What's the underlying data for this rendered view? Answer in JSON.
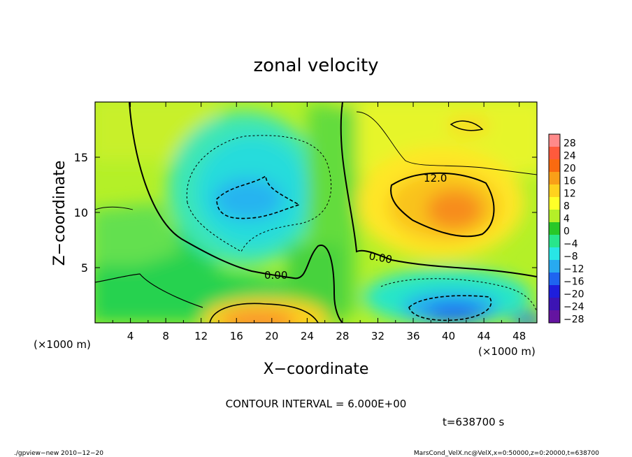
{
  "chart_data": {
    "type": "heatmap",
    "title": "zonal velocity",
    "xlabel": "X−coordinate",
    "ylabel": "Z−coordinate",
    "x_unit_label": "(×1000 m)",
    "z_unit_label": "(×1000 m)",
    "xlim": [
      0,
      50
    ],
    "ylim": [
      0,
      20
    ],
    "x_ticks": [
      "4",
      "8",
      "12",
      "16",
      "20",
      "24",
      "28",
      "32",
      "36",
      "40",
      "44",
      "48"
    ],
    "y_ticks": [
      "5",
      "10",
      "15"
    ],
    "colorbar": {
      "labels": [
        "28",
        "24",
        "20",
        "16",
        "12",
        "8",
        "4",
        "0",
        "−4",
        "−8",
        "−12",
        "−16",
        "−20",
        "−24",
        "−28"
      ],
      "colors": [
        "#ff8a8a",
        "#ff5a3c",
        "#f96a10",
        "#f9a018",
        "#ffd21e",
        "#ffff28",
        "#b4f028",
        "#28c828",
        "#28e68c",
        "#28e6e6",
        "#28aaf0",
        "#1e64f0",
        "#1e1edc",
        "#3c14b4",
        "#6414a0"
      ]
    },
    "contour_labels": [
      "12.0",
      "0.00",
      "0.00"
    ],
    "contour_interval_text": "CONTOUR INTERVAL = 6.000E+00",
    "features": [
      {
        "kind": "max",
        "x": 40,
        "z": 10.5,
        "value": 18
      },
      {
        "kind": "max",
        "x": 19,
        "z": 1.0,
        "value": 16
      },
      {
        "kind": "min",
        "x": 16,
        "z": 11,
        "value": -14
      },
      {
        "kind": "min",
        "x": 41,
        "z": 1.3,
        "value": -16
      },
      {
        "kind": "min",
        "x": 48,
        "z": 0.5,
        "value": -12
      }
    ]
  },
  "footer": {
    "time_label": "t=638700 s",
    "program": "./gpview−new   2010−12−20",
    "source": "MarsCond_VelX.nc@VelX,x=0:50000,z=0:20000,t=638700"
  }
}
